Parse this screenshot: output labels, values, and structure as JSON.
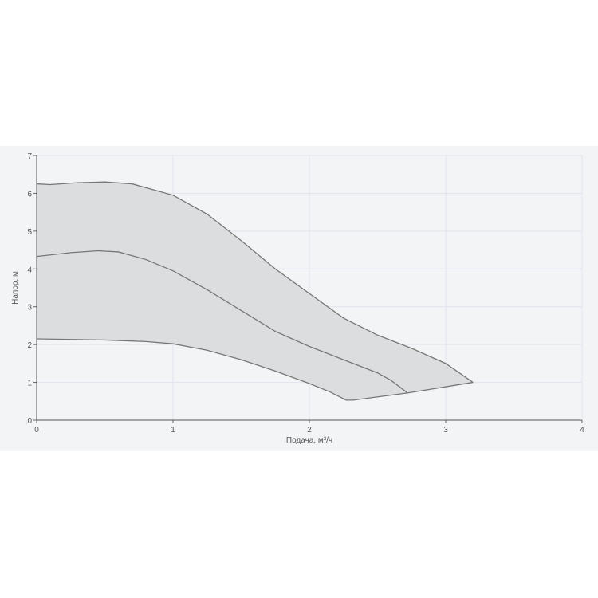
{
  "chart_data": {
    "type": "area",
    "title": "",
    "xlabel": "Подача, м³/ч",
    "ylabel": "Напор, м",
    "xlim": [
      0,
      4
    ],
    "ylim": [
      0,
      7
    ],
    "xticks": [
      "0",
      "1",
      "2",
      "3",
      "4"
    ],
    "yticks": [
      "0",
      "1",
      "2",
      "3",
      "4",
      "5",
      "6",
      "7"
    ],
    "grid": true,
    "colors": {
      "fill": "#dcdddf",
      "line": "#777777",
      "grid": "#e0e4ec",
      "background": "#f3f4f6"
    },
    "series": [
      {
        "x": [
          0,
          0.1,
          0.3,
          0.5,
          0.7,
          1,
          1.25,
          1.5,
          1.75,
          2,
          2.25,
          2.5,
          2.75,
          3,
          3.1,
          3.2
        ],
        "y": [
          6.25,
          6.23,
          6.28,
          6.3,
          6.25,
          5.95,
          5.45,
          4.75,
          4.0,
          3.35,
          2.7,
          2.25,
          1.9,
          1.5,
          1.25,
          1.0
        ]
      },
      {
        "x": [
          0,
          0.25,
          0.45,
          0.6,
          0.8,
          1,
          1.25,
          1.5,
          1.75,
          2,
          2.25,
          2.5,
          2.6,
          2.72
        ],
        "y": [
          4.33,
          4.43,
          4.48,
          4.45,
          4.25,
          3.95,
          3.45,
          2.9,
          2.35,
          1.95,
          1.6,
          1.25,
          1.05,
          0.72
        ]
      },
      {
        "x": [
          0,
          0.5,
          0.8,
          1,
          1.25,
          1.5,
          1.75,
          2,
          2.15,
          2.27,
          2.32
        ],
        "y": [
          2.15,
          2.12,
          2.08,
          2.02,
          1.85,
          1.6,
          1.3,
          0.97,
          0.75,
          0.53,
          0.53
        ]
      },
      {
        "x": [
          2.32,
          2.72,
          3.2
        ],
        "y": [
          0.53,
          0.72,
          1.0
        ]
      }
    ]
  }
}
